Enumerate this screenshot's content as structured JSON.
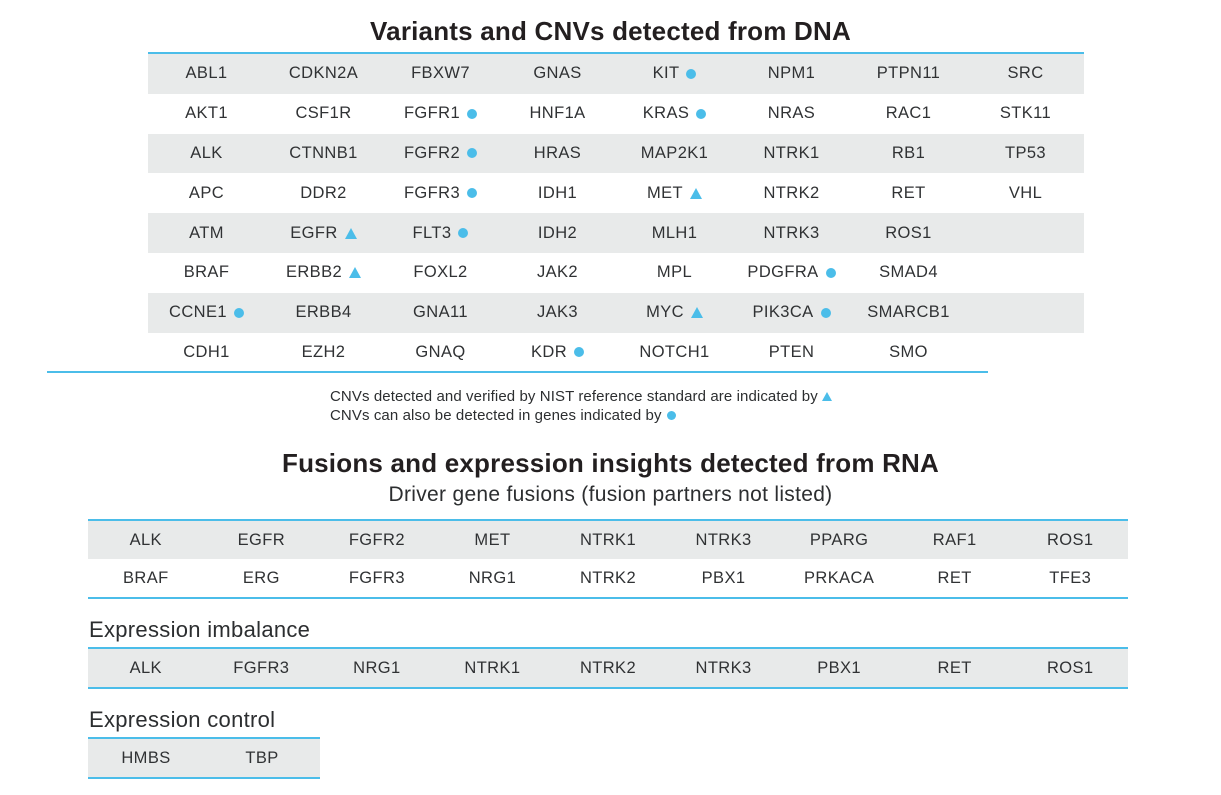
{
  "colors": {
    "accent": "#4BBDE9",
    "row_shade": "#E8EAEA",
    "title_text": "#231F20",
    "gene_text": "#303234"
  },
  "dna": {
    "title": "Variants and CNVs detected from DNA",
    "rows": [
      [
        {
          "gene": "ABL1"
        },
        {
          "gene": "CDKN2A"
        },
        {
          "gene": "FBXW7"
        },
        {
          "gene": "GNAS"
        },
        {
          "gene": "KIT",
          "marker": "circle"
        },
        {
          "gene": "NPM1"
        },
        {
          "gene": "PTPN11"
        },
        {
          "gene": "SRC"
        }
      ],
      [
        {
          "gene": "AKT1"
        },
        {
          "gene": "CSF1R"
        },
        {
          "gene": "FGFR1",
          "marker": "circle"
        },
        {
          "gene": "HNF1A"
        },
        {
          "gene": "KRAS",
          "marker": "circle"
        },
        {
          "gene": "NRAS"
        },
        {
          "gene": "RAC1"
        },
        {
          "gene": "STK11"
        }
      ],
      [
        {
          "gene": "ALK"
        },
        {
          "gene": "CTNNB1"
        },
        {
          "gene": "FGFR2",
          "marker": "circle"
        },
        {
          "gene": "HRAS"
        },
        {
          "gene": "MAP2K1"
        },
        {
          "gene": "NTRK1"
        },
        {
          "gene": "RB1"
        },
        {
          "gene": "TP53"
        }
      ],
      [
        {
          "gene": "APC"
        },
        {
          "gene": "DDR2"
        },
        {
          "gene": "FGFR3",
          "marker": "circle"
        },
        {
          "gene": "IDH1"
        },
        {
          "gene": "MET",
          "marker": "triangle"
        },
        {
          "gene": "NTRK2"
        },
        {
          "gene": "RET"
        },
        {
          "gene": "VHL"
        }
      ],
      [
        {
          "gene": "ATM"
        },
        {
          "gene": "EGFR",
          "marker": "triangle"
        },
        {
          "gene": "FLT3",
          "marker": "circle"
        },
        {
          "gene": "IDH2"
        },
        {
          "gene": "MLH1"
        },
        {
          "gene": "NTRK3"
        },
        {
          "gene": "ROS1"
        }
      ],
      [
        {
          "gene": "BRAF"
        },
        {
          "gene": "ERBB2",
          "marker": "triangle"
        },
        {
          "gene": "FOXL2"
        },
        {
          "gene": "JAK2"
        },
        {
          "gene": "MPL"
        },
        {
          "gene": "PDGFRA",
          "marker": "circle"
        },
        {
          "gene": "SMAD4"
        }
      ],
      [
        {
          "gene": "CCNE1",
          "marker": "circle"
        },
        {
          "gene": "ERBB4"
        },
        {
          "gene": "GNA11"
        },
        {
          "gene": "JAK3"
        },
        {
          "gene": "MYC",
          "marker": "triangle"
        },
        {
          "gene": "PIK3CA",
          "marker": "circle"
        },
        {
          "gene": "SMARCB1"
        }
      ],
      [
        {
          "gene": "CDH1"
        },
        {
          "gene": "EZH2"
        },
        {
          "gene": "GNAQ"
        },
        {
          "gene": "KDR",
          "marker": "circle"
        },
        {
          "gene": "NOTCH1"
        },
        {
          "gene": "PTEN"
        },
        {
          "gene": "SMO"
        }
      ]
    ],
    "footnotes": [
      {
        "text": "CNVs detected and verified by NIST reference standard are indicated by",
        "marker": "triangle"
      },
      {
        "text": "CNVs can also be detected in genes indicated by",
        "marker": "circle"
      }
    ]
  },
  "rna": {
    "title": "Fusions and expression insights detected from RNA",
    "fusions": {
      "subtitle": "Driver gene fusions (fusion partners not listed)",
      "rows": [
        [
          "ALK",
          "EGFR",
          "FGFR2",
          "MET",
          "NTRK1",
          "NTRK3",
          "PPARG",
          "RAF1",
          "ROS1"
        ],
        [
          "BRAF",
          "ERG",
          "FGFR3",
          "NRG1",
          "NTRK2",
          "PBX1",
          "PRKACA",
          "RET",
          "TFE3"
        ]
      ]
    },
    "expression_imbalance": {
      "label": "Expression imbalance",
      "rows": [
        [
          "ALK",
          "FGFR3",
          "NRG1",
          "NTRK1",
          "NTRK2",
          "NTRK3",
          "PBX1",
          "RET",
          "ROS1"
        ]
      ]
    },
    "expression_control": {
      "label": "Expression control",
      "rows": [
        [
          "HMBS",
          "TBP"
        ]
      ]
    }
  }
}
